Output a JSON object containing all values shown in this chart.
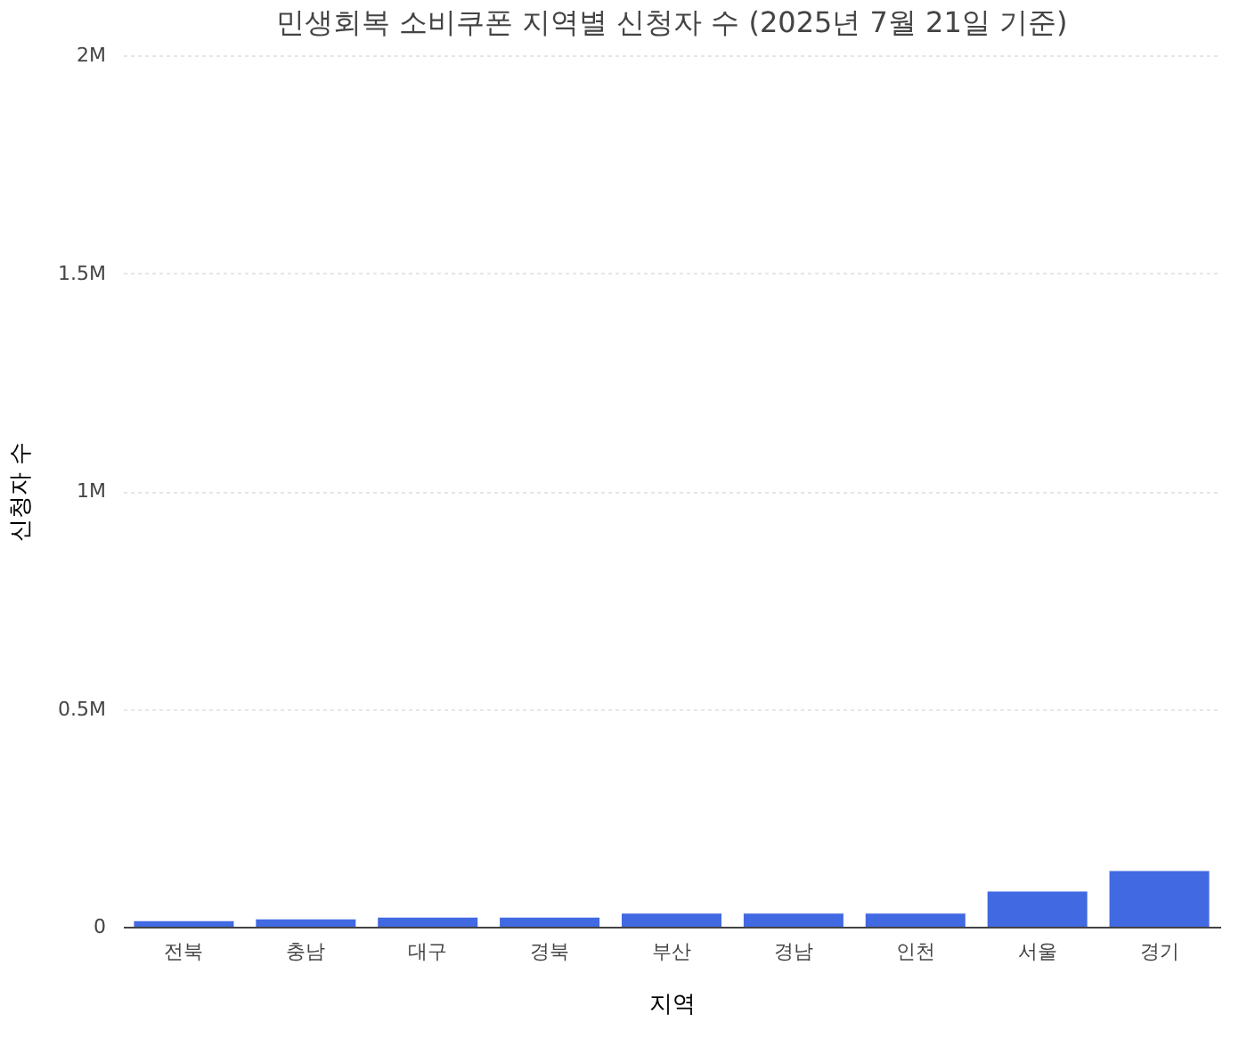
{
  "chart_data": {
    "type": "bar",
    "title": "민생회복 소비쿠폰 지역별 신청자 수 (2025년 7월 21일 기준)",
    "xlabel": "지역",
    "ylabel": "신청자 수",
    "categories": [
      "전북",
      "충남",
      "대구",
      "경북",
      "부산",
      "경남",
      "인천",
      "서울",
      "경기"
    ],
    "values": [
      13000,
      17000,
      21000,
      21000,
      30000,
      30000,
      30000,
      81000,
      128000
    ],
    "color": "#4169e1",
    "ylim": [
      0,
      2000000
    ],
    "yticks": [
      0,
      {
        "value": 500000,
        "label": "0.5M"
      },
      {
        "value": 1000000,
        "label": "1M"
      },
      {
        "value": 1500000,
        "label": "1.5M"
      },
      {
        "value": 2000000,
        "label": "2M"
      }
    ],
    "grid": "y"
  }
}
